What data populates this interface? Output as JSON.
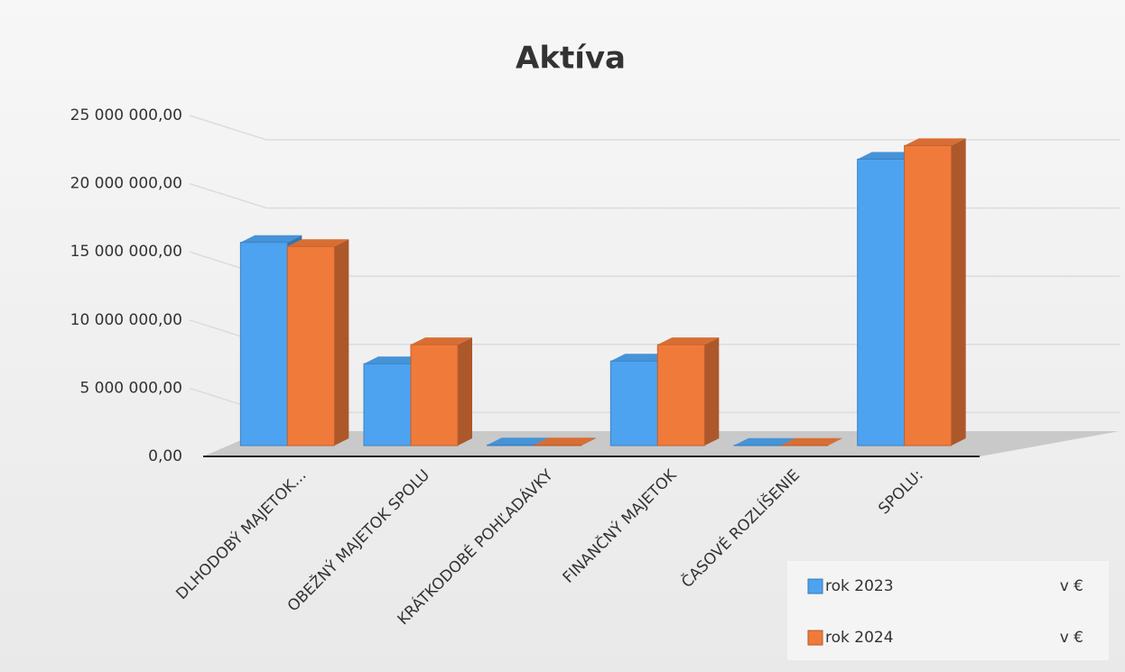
{
  "chart_data": {
    "type": "bar3d",
    "title": "Aktíva",
    "categories": [
      "DLHODOBÝ MAJETOK...",
      "OBEŽNÝ MAJETOK SPOLU",
      "KRÁTKODOBÉ POHĽADÁVKY",
      "FINANČNÝ MAJETOK",
      "ČASOVÉ ROZLÍŠENIE",
      "SPOLU:"
    ],
    "series": [
      {
        "name": "rok 2023",
        "color": "#4da3f0",
        "values": [
          14900000,
          6000000,
          50000,
          6200000,
          20000,
          21000000
        ]
      },
      {
        "name": "rok 2024",
        "color": "#f07a3a",
        "values": [
          14600000,
          7400000,
          50000,
          7400000,
          20000,
          22000000
        ]
      }
    ],
    "legend_unit": "v €",
    "ylim": [
      0,
      25000000
    ],
    "yticks": [
      {
        "value": 0,
        "label": "0,00"
      },
      {
        "value": 5000000,
        "label": "5 000 000,00"
      },
      {
        "value": 10000000,
        "label": "10 000 000,00"
      },
      {
        "value": 15000000,
        "label": "15 000 000,00"
      },
      {
        "value": 20000000,
        "label": "20 000 000,00"
      },
      {
        "value": 25000000,
        "label": "25 000 000,00"
      }
    ],
    "grid": true,
    "legend": "bottom-right"
  }
}
